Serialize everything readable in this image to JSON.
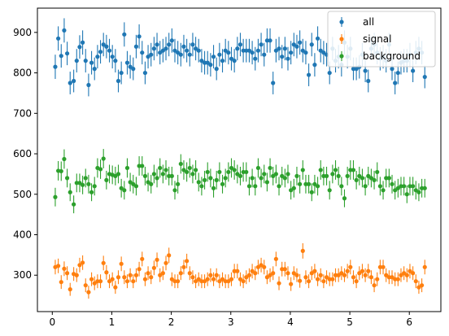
{
  "chart_data": {
    "type": "scatter",
    "errorbars": true,
    "xlim": [
      -0.25,
      6.53
    ],
    "ylim": [
      210,
      960
    ],
    "x_ticks": [
      0,
      1,
      2,
      3,
      4,
      5,
      6
    ],
    "y_ticks": [
      300,
      400,
      500,
      600,
      700,
      800,
      900
    ],
    "x_tick_labels": [
      "0",
      "1",
      "2",
      "3",
      "4",
      "5",
      "6"
    ],
    "y_tick_labels": [
      "300",
      "400",
      "500",
      "600",
      "700",
      "800",
      "900"
    ],
    "grid": false,
    "legend_position": "top-right",
    "x": [
      0.05,
      0.1,
      0.15,
      0.2,
      0.25,
      0.3,
      0.36,
      0.41,
      0.46,
      0.51,
      0.56,
      0.61,
      0.66,
      0.71,
      0.76,
      0.81,
      0.86,
      0.91,
      0.96,
      1.01,
      1.06,
      1.11,
      1.16,
      1.21,
      1.26,
      1.31,
      1.36,
      1.41,
      1.46,
      1.51,
      1.56,
      1.61,
      1.66,
      1.71,
      1.76,
      1.81,
      1.86,
      1.91,
      1.96,
      2.01,
      2.06,
      2.11,
      2.16,
      2.21,
      2.26,
      2.31,
      2.36,
      2.41,
      2.46,
      2.51,
      2.56,
      2.61,
      2.66,
      2.71,
      2.76,
      2.81,
      2.86,
      2.91,
      2.96,
      3.01,
      3.06,
      3.11,
      3.16,
      3.21,
      3.26,
      3.31,
      3.36,
      3.41,
      3.46,
      3.51,
      3.56,
      3.61,
      3.66,
      3.71,
      3.76,
      3.81,
      3.86,
      3.91,
      3.96,
      4.01,
      4.06,
      4.11,
      4.16,
      4.21,
      4.26,
      4.31,
      4.36,
      4.41,
      4.46,
      4.51,
      4.56,
      4.61,
      4.66,
      4.71,
      4.76,
      4.81,
      4.86,
      4.91,
      4.96,
      5.01,
      5.06,
      5.11,
      5.16,
      5.21,
      5.26,
      5.31,
      5.36,
      5.41,
      5.46,
      5.51,
      5.56,
      5.61,
      5.66,
      5.71,
      5.76,
      5.81,
      5.86,
      5.91,
      5.96,
      6.01,
      6.06,
      6.11,
      6.16,
      6.21,
      6.26
    ],
    "series": [
      {
        "name": "all",
        "color": "#1f77b4",
        "values": [
          815,
          885,
          842,
          905,
          848,
          775,
          780,
          830,
          864,
          875,
          830,
          770,
          825,
          810,
          840,
          852,
          870,
          865,
          855,
          840,
          830,
          780,
          800,
          895,
          825,
          815,
          810,
          865,
          890,
          850,
          800,
          840,
          845,
          860,
          870,
          850,
          855,
          860,
          870,
          880,
          855,
          850,
          845,
          865,
          855,
          845,
          870,
          860,
          855,
          830,
          825,
          825,
          820,
          840,
          810,
          845,
          830,
          855,
          850,
          835,
          830,
          860,
          870,
          855,
          855,
          855,
          850,
          835,
          855,
          870,
          845,
          880,
          880,
          775,
          855,
          860,
          840,
          860,
          835,
          850,
          870,
          865,
          875,
          855,
          850,
          795,
          870,
          820,
          885,
          855,
          850,
          845,
          800,
          860,
          830,
          840,
          820,
          875,
          840,
          860,
          810,
          810,
          815,
          845,
          805,
          780,
          860,
          870,
          850,
          835,
          840,
          830,
          870,
          810,
          775,
          800,
          825,
          830,
          830,
          845,
          805,
          850,
          860,
          850,
          790
        ],
        "errors": [
          30,
          30,
          29,
          30,
          29,
          28,
          28,
          29,
          29,
          30,
          29,
          28,
          29,
          28,
          29,
          29,
          29,
          29,
          29,
          29,
          29,
          28,
          28,
          30,
          29,
          29,
          28,
          29,
          30,
          29,
          28,
          29,
          29,
          29,
          29,
          29,
          29,
          29,
          29,
          30,
          29,
          29,
          29,
          29,
          29,
          29,
          29,
          29,
          29,
          29,
          29,
          29,
          29,
          29,
          28,
          29,
          29,
          29,
          29,
          29,
          29,
          29,
          29,
          29,
          29,
          29,
          29,
          29,
          29,
          29,
          29,
          30,
          30,
          28,
          29,
          29,
          29,
          29,
          29,
          29,
          29,
          29,
          30,
          29,
          29,
          28,
          29,
          29,
          30,
          29,
          29,
          29,
          28,
          29,
          29,
          29,
          29,
          30,
          29,
          29,
          28,
          28,
          29,
          29,
          28,
          28,
          29,
          29,
          29,
          29,
          29,
          29,
          29,
          28,
          28,
          28,
          29,
          29,
          29,
          29,
          28,
          29,
          29,
          29,
          28
        ]
      },
      {
        "name": "signal",
        "color": "#ff7f0e",
        "values": [
          320,
          323,
          283,
          316,
          305,
          265,
          303,
          300,
          325,
          331,
          275,
          258,
          290,
          280,
          285,
          285,
          330,
          307,
          285,
          290,
          270,
          295,
          328,
          295,
          285,
          300,
          285,
          300,
          315,
          340,
          290,
          305,
          295,
          318,
          338,
          300,
          305,
          330,
          349,
          290,
          285,
          285,
          305,
          320,
          335,
          305,
          295,
          285,
          290,
          285,
          285,
          290,
          300,
          290,
          300,
          285,
          290,
          285,
          285,
          290,
          310,
          310,
          290,
          285,
          295,
          300,
          310,
          305,
          320,
          325,
          320,
          295,
          300,
          305,
          340,
          280,
          315,
          315,
          305,
          278,
          305,
          300,
          286,
          360,
          295,
          285,
          305,
          310,
          290,
          300,
          285,
          295,
          290,
          290,
          300,
          300,
          305,
          300,
          310,
          320,
          295,
          285,
          305,
          310,
          300,
          310,
          295,
          275,
          290,
          320,
          320,
          300,
          295,
          295,
          290,
          290,
          300,
          305,
          300,
          310,
          305,
          285,
          270,
          275,
          320
        ],
        "errors": [
          18,
          18,
          17,
          18,
          17,
          16,
          17,
          17,
          18,
          18,
          17,
          16,
          17,
          17,
          17,
          17,
          18,
          18,
          17,
          17,
          16,
          17,
          18,
          17,
          17,
          17,
          17,
          17,
          18,
          18,
          17,
          17,
          17,
          18,
          18,
          17,
          17,
          18,
          19,
          17,
          17,
          17,
          17,
          18,
          18,
          17,
          17,
          17,
          17,
          17,
          17,
          17,
          17,
          17,
          17,
          17,
          17,
          17,
          17,
          17,
          18,
          18,
          17,
          17,
          17,
          17,
          18,
          17,
          18,
          18,
          18,
          17,
          17,
          17,
          18,
          17,
          18,
          18,
          17,
          17,
          17,
          17,
          17,
          19,
          17,
          17,
          17,
          18,
          17,
          17,
          17,
          17,
          17,
          17,
          17,
          17,
          17,
          17,
          18,
          18,
          17,
          17,
          17,
          18,
          17,
          18,
          17,
          17,
          17,
          18,
          18,
          17,
          17,
          17,
          17,
          17,
          17,
          17,
          17,
          18,
          17,
          17,
          16,
          17,
          18
        ]
      },
      {
        "name": "background",
        "color": "#2ca02c",
        "values": [
          493,
          558,
          557,
          587,
          540,
          505,
          475,
          528,
          528,
          523,
          540,
          525,
          505,
          520,
          565,
          562,
          588,
          535,
          550,
          548,
          545,
          550,
          515,
          510,
          565,
          530,
          525,
          520,
          570,
          570,
          545,
          530,
          525,
          550,
          540,
          565,
          550,
          560,
          545,
          545,
          510,
          525,
          575,
          560,
          555,
          565,
          550,
          560,
          530,
          520,
          535,
          555,
          540,
          515,
          535,
          555,
          525,
          540,
          555,
          565,
          560,
          550,
          545,
          555,
          555,
          520,
          540,
          520,
          565,
          540,
          550,
          530,
          565,
          545,
          550,
          520,
          545,
          540,
          550,
          510,
          515,
          545,
          525,
          560,
          525,
          525,
          505,
          525,
          520,
          560,
          545,
          545,
          510,
          550,
          560,
          545,
          520,
          490,
          545,
          560,
          560,
          535,
          545,
          540,
          520,
          545,
          540,
          535,
          555,
          520,
          510,
          540,
          540,
          525,
          510,
          515,
          520,
          520,
          500,
          520,
          520,
          510,
          505,
          515,
          515
        ],
        "errors": [
          23,
          24,
          24,
          24,
          23,
          22,
          22,
          23,
          23,
          23,
          23,
          23,
          22,
          23,
          24,
          24,
          24,
          23,
          23,
          23,
          23,
          23,
          23,
          23,
          24,
          23,
          23,
          23,
          24,
          24,
          23,
          23,
          23,
          23,
          23,
          24,
          23,
          24,
          23,
          23,
          23,
          23,
          24,
          24,
          24,
          24,
          23,
          24,
          23,
          23,
          23,
          24,
          23,
          23,
          23,
          24,
          23,
          23,
          24,
          24,
          24,
          23,
          23,
          24,
          24,
          23,
          23,
          23,
          24,
          23,
          23,
          23,
          24,
          23,
          23,
          23,
          23,
          23,
          23,
          23,
          23,
          23,
          23,
          24,
          23,
          23,
          22,
          23,
          23,
          24,
          23,
          23,
          23,
          23,
          24,
          23,
          23,
          22,
          23,
          24,
          24,
          23,
          23,
          23,
          23,
          23,
          23,
          23,
          24,
          23,
          23,
          23,
          23,
          23,
          23,
          23,
          23,
          23,
          22,
          23,
          23,
          23,
          22,
          23,
          23
        ]
      }
    ]
  }
}
